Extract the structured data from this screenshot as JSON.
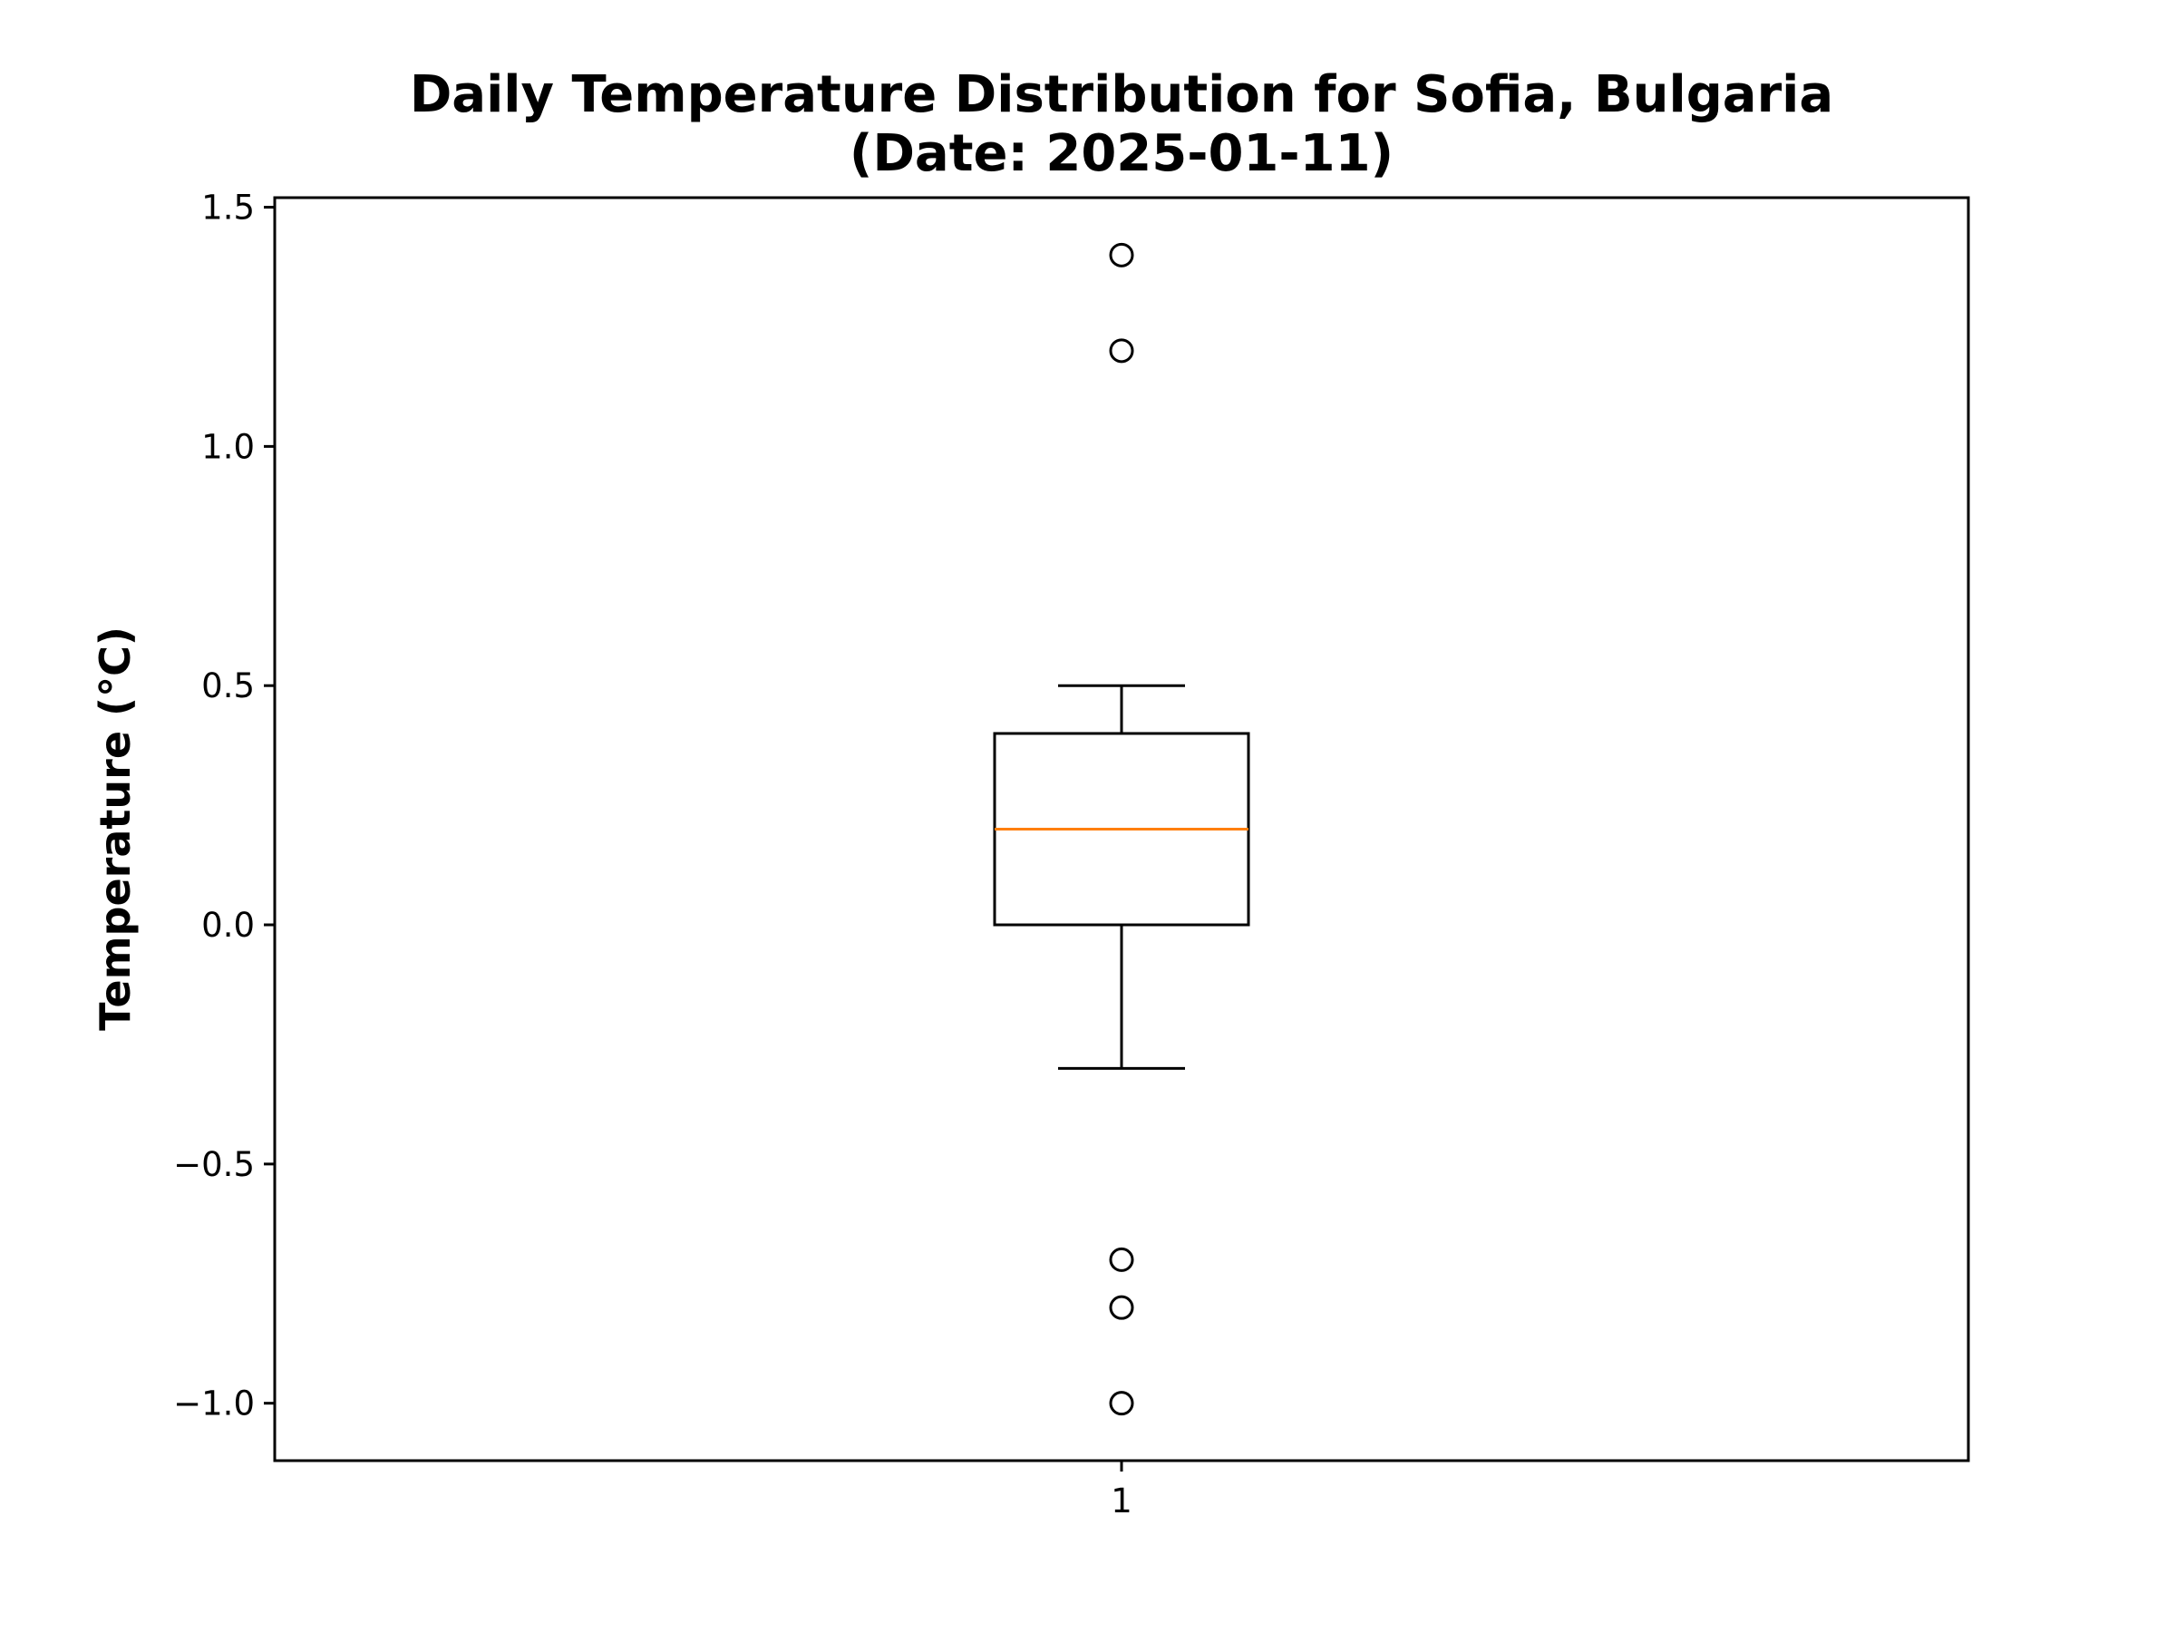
{
  "chart_data": {
    "type": "box",
    "title": "Daily Temperature Distribution for Sofia, Bulgaria",
    "subtitle": "(Date: 2025-01-11)",
    "xlabel": "",
    "ylabel": "Temperature (°C)",
    "categories": [
      "1"
    ],
    "ylim": [
      -1.12,
      1.52
    ],
    "yticks": [
      -1.0,
      -0.5,
      0.0,
      0.5,
      1.0,
      1.5
    ],
    "ytick_labels": [
      "−1.0",
      "−0.5",
      "0.0",
      "0.5",
      "1.0",
      "1.5"
    ],
    "grid": false,
    "boxes": [
      {
        "category": "1",
        "whisker_low": -0.3,
        "q1": 0.0,
        "median": 0.2,
        "q3": 0.4,
        "whisker_high": 0.5,
        "outliers": [
          1.4,
          1.2,
          -0.7,
          -0.8,
          -1.0
        ]
      }
    ],
    "colors": {
      "box": "#000000",
      "median": "#ff7f0e",
      "outlier": "#000000"
    }
  }
}
